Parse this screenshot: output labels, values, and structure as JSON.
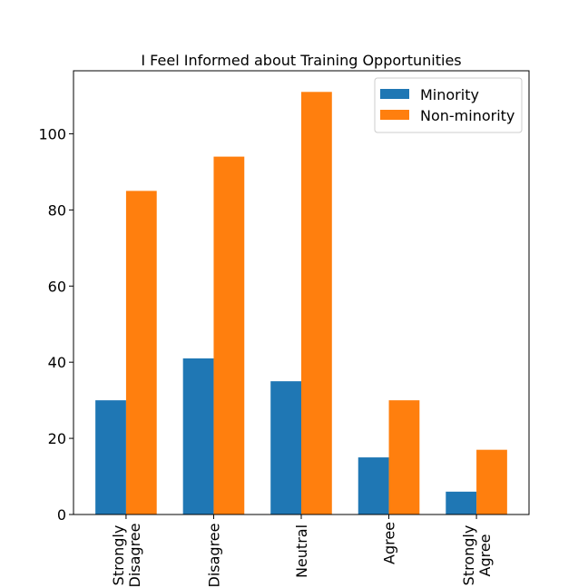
{
  "chart_data": {
    "type": "bar",
    "title": "I Feel Informed about Training Opportunities",
    "categories": [
      "Strongly\nDisagree",
      "Disagree",
      "Neutral",
      "Agree",
      "Strongly\nAgree"
    ],
    "series": [
      {
        "name": "Minority",
        "color": "#1f77b4",
        "values": [
          30,
          41,
          35,
          15,
          6
        ]
      },
      {
        "name": "Non-minority",
        "color": "#ff7f0e",
        "values": [
          85,
          94,
          111,
          30,
          17
        ]
      }
    ],
    "ylim": [
      0,
      116.55
    ],
    "yticks": [
      0,
      20,
      40,
      60,
      80,
      100
    ],
    "legend": "upper right"
  }
}
